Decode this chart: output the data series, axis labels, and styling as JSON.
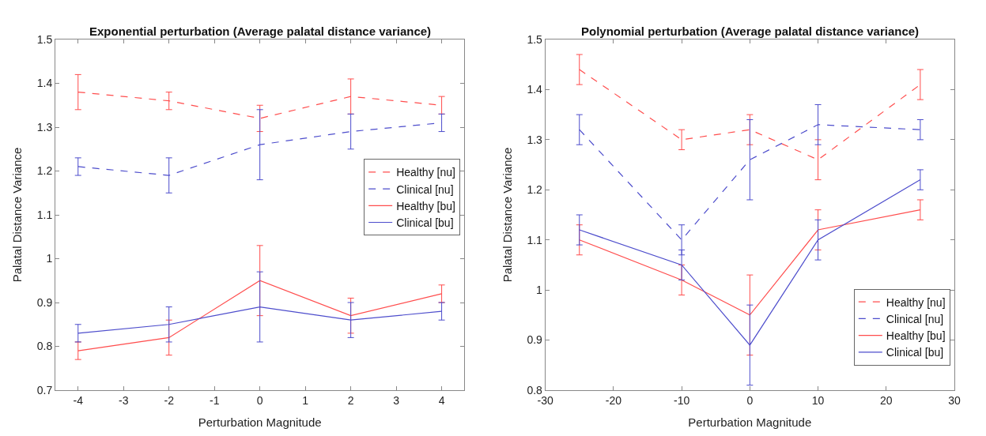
{
  "chart_data": [
    {
      "type": "line",
      "title": "Exponential perturbation (Average palatal distance variance)",
      "xlabel": "Perturbation Magnitude",
      "ylabel": "Palatal Distance Variance",
      "x": [
        -4,
        -2,
        0,
        2,
        4
      ],
      "xlim": [
        -4.5,
        4.5
      ],
      "xticks": [
        -4,
        -3,
        -2,
        -1,
        0,
        1,
        2,
        3,
        4
      ],
      "ylim": [
        0.7,
        1.5
      ],
      "yticks": [
        0.7,
        0.8,
        0.9,
        1,
        1.1,
        1.2,
        1.3,
        1.4,
        1.5
      ],
      "legend": "right",
      "marker": "none",
      "series": [
        {
          "name": "Healthy [nu]",
          "color": "#ff4d4d",
          "line_style": "dashed",
          "values": [
            1.38,
            1.36,
            1.32,
            1.37,
            1.35
          ],
          "errors": [
            [
              1.34,
              1.42
            ],
            [
              1.34,
              1.38
            ],
            [
              1.29,
              1.35
            ],
            [
              1.33,
              1.41
            ],
            [
              1.33,
              1.37
            ]
          ]
        },
        {
          "name": "Clinical [nu]",
          "color": "#4d4dcc",
          "line_style": "dashed",
          "values": [
            1.21,
            1.19,
            1.26,
            1.29,
            1.31
          ],
          "errors": [
            [
              1.19,
              1.23
            ],
            [
              1.15,
              1.23
            ],
            [
              1.18,
              1.34
            ],
            [
              1.25,
              1.33
            ],
            [
              1.29,
              1.33
            ]
          ]
        },
        {
          "name": "Healthy [bu]",
          "color": "#ff4d4d",
          "line_style": "solid",
          "values": [
            0.79,
            0.82,
            0.95,
            0.87,
            0.92
          ],
          "errors": [
            [
              0.77,
              0.81
            ],
            [
              0.78,
              0.86
            ],
            [
              0.87,
              1.03
            ],
            [
              0.83,
              0.91
            ],
            [
              0.9,
              0.94
            ]
          ]
        },
        {
          "name": "Clinical [bu]",
          "color": "#4d4dcc",
          "line_style": "solid",
          "values": [
            0.83,
            0.85,
            0.89,
            0.86,
            0.88
          ],
          "errors": [
            [
              0.81,
              0.85
            ],
            [
              0.81,
              0.89
            ],
            [
              0.81,
              0.97
            ],
            [
              0.82,
              0.9
            ],
            [
              0.86,
              0.9
            ]
          ]
        }
      ]
    },
    {
      "type": "line",
      "title": "Polynomial perturbation (Average palatal distance variance)",
      "xlabel": "Perturbation Magnitude",
      "ylabel": "Palatal Distance Variance",
      "x": [
        -25,
        -10,
        0,
        10,
        25
      ],
      "xlim": [
        -30,
        30
      ],
      "xticks": [
        -30,
        -20,
        -10,
        0,
        10,
        20,
        30
      ],
      "ylim": [
        0.8,
        1.5
      ],
      "yticks": [
        0.8,
        0.9,
        1,
        1.1,
        1.2,
        1.3,
        1.4,
        1.5
      ],
      "legend": "bottom right",
      "marker": "none",
      "series": [
        {
          "name": "Healthy [nu]",
          "color": "#ff4d4d",
          "line_style": "dashed",
          "values": [
            1.44,
            1.3,
            1.32,
            1.26,
            1.41
          ],
          "errors": [
            [
              1.41,
              1.47
            ],
            [
              1.28,
              1.32
            ],
            [
              1.29,
              1.35
            ],
            [
              1.22,
              1.3
            ],
            [
              1.38,
              1.44
            ]
          ]
        },
        {
          "name": "Clinical [nu]",
          "color": "#4d4dcc",
          "line_style": "dashed",
          "values": [
            1.32,
            1.1,
            1.26,
            1.33,
            1.32
          ],
          "errors": [
            [
              1.29,
              1.35
            ],
            [
              1.07,
              1.13
            ],
            [
              1.18,
              1.34
            ],
            [
              1.29,
              1.37
            ],
            [
              1.3,
              1.34
            ]
          ]
        },
        {
          "name": "Healthy [bu]",
          "color": "#ff4d4d",
          "line_style": "solid",
          "values": [
            1.1,
            1.02,
            0.95,
            1.12,
            1.16
          ],
          "errors": [
            [
              1.07,
              1.13
            ],
            [
              0.99,
              1.05
            ],
            [
              0.87,
              1.03
            ],
            [
              1.08,
              1.16
            ],
            [
              1.14,
              1.18
            ]
          ]
        },
        {
          "name": "Clinical [bu]",
          "color": "#4d4dcc",
          "line_style": "solid",
          "values": [
            1.12,
            1.05,
            0.89,
            1.1,
            1.22
          ],
          "errors": [
            [
              1.09,
              1.15
            ],
            [
              1.02,
              1.08
            ],
            [
              0.81,
              0.97
            ],
            [
              1.06,
              1.14
            ],
            [
              1.2,
              1.24
            ]
          ]
        }
      ]
    }
  ]
}
